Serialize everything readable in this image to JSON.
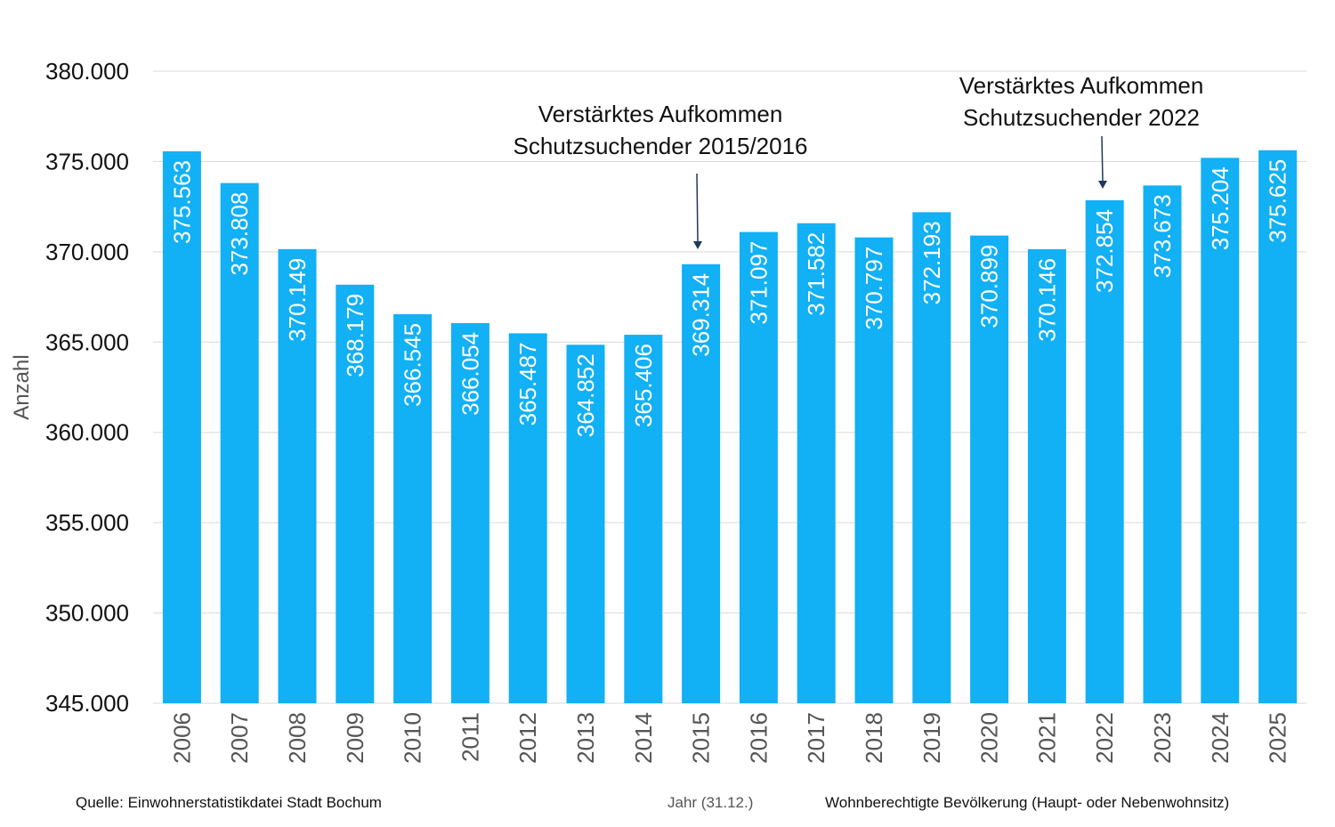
{
  "chart_data": {
    "type": "bar",
    "ylabel": "Anzahl",
    "xlabel": "Jahr (31.12.)",
    "ylim": [
      345000,
      380000
    ],
    "yticks": [
      "345.000",
      "350.000",
      "355.000",
      "360.000",
      "365.000",
      "370.000",
      "375.000",
      "380.000"
    ],
    "ytick_values": [
      345000,
      350000,
      355000,
      360000,
      365000,
      370000,
      375000,
      380000
    ],
    "grid": true,
    "bar_color": "#12B0F5",
    "categories": [
      "2006",
      "2007",
      "2008",
      "2009",
      "2010",
      "2011",
      "2012",
      "2013",
      "2014",
      "2015",
      "2016",
      "2017",
      "2018",
      "2019",
      "2020",
      "2021",
      "2022",
      "2023",
      "2024",
      "2025"
    ],
    "values": [
      375563,
      373808,
      370149,
      368179,
      366545,
      366054,
      365487,
      364852,
      365406,
      369314,
      371097,
      371582,
      370797,
      372193,
      370899,
      370146,
      372854,
      373673,
      375204,
      375625
    ],
    "data_labels": [
      "375.563",
      "373.808",
      "370.149",
      "368.179",
      "366.545",
      "366.054",
      "365.487",
      "364.852",
      "365.406",
      "369.314",
      "371.097",
      "371.582",
      "370.797",
      "372.193",
      "370.899",
      "370.146",
      "372.854",
      "373.673",
      "375.204",
      "375.625"
    ],
    "annotations": [
      {
        "lines": [
          "Verstärktes Aufkommen",
          "Schutzsuchender 2015/2016"
        ],
        "category": "2015"
      },
      {
        "lines": [
          "Verstärktes Aufkommen",
          "Schutzsuchender 2022"
        ],
        "category": "2022"
      }
    ]
  },
  "footer": {
    "source": "Quelle: Einwohnerstatistikdatei Stadt Bochum",
    "xlabel": "Jahr (31.12.)",
    "series_note": "Wohnberechtigte Bevölkerung (Haupt- oder Nebenwohnsitz)"
  }
}
